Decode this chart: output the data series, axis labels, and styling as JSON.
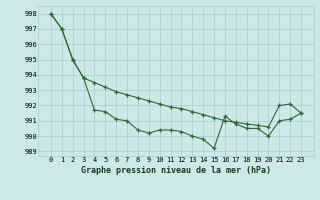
{
  "line1_x": [
    0,
    1,
    2,
    3,
    4,
    5,
    6,
    7,
    8,
    9,
    10,
    11,
    12,
    13,
    14,
    15,
    16,
    17,
    18,
    19,
    20,
    21,
    22,
    23
  ],
  "line1_y": [
    998.0,
    997.0,
    995.0,
    993.8,
    993.5,
    993.2,
    992.9,
    992.7,
    992.5,
    992.3,
    992.1,
    991.9,
    991.8,
    991.6,
    991.4,
    991.2,
    991.0,
    990.9,
    990.8,
    990.7,
    990.6,
    992.0,
    992.1,
    991.5
  ],
  "line2_x": [
    0,
    1,
    2,
    3,
    4,
    5,
    6,
    7,
    8,
    9,
    10,
    11,
    12,
    13,
    14,
    15,
    16,
    17,
    18,
    19,
    20,
    21,
    22,
    23
  ],
  "line2_y": [
    998.0,
    997.0,
    995.0,
    993.8,
    991.7,
    991.6,
    991.1,
    991.0,
    990.4,
    990.2,
    990.4,
    990.4,
    990.3,
    990.0,
    989.8,
    989.2,
    991.3,
    990.8,
    990.5,
    990.5,
    990.0,
    991.0,
    991.1,
    991.5
  ],
  "line_color": "#2d6a2d",
  "bg_color": "#cce8e8",
  "grid_color": "#a8cccc",
  "ylim": [
    988.7,
    998.5
  ],
  "yticks": [
    989,
    990,
    991,
    992,
    993,
    994,
    995,
    996,
    997,
    998
  ],
  "xticks": [
    0,
    1,
    2,
    3,
    4,
    5,
    6,
    7,
    8,
    9,
    10,
    11,
    12,
    13,
    14,
    15,
    16,
    17,
    18,
    19,
    20,
    21,
    22,
    23
  ],
  "xlabel": "Graphe pression niveau de la mer (hPa)",
  "marker": "+",
  "linewidth": 0.8,
  "markersize": 3.5,
  "xlabel_fontsize": 6.0,
  "tick_fontsize": 5.0
}
